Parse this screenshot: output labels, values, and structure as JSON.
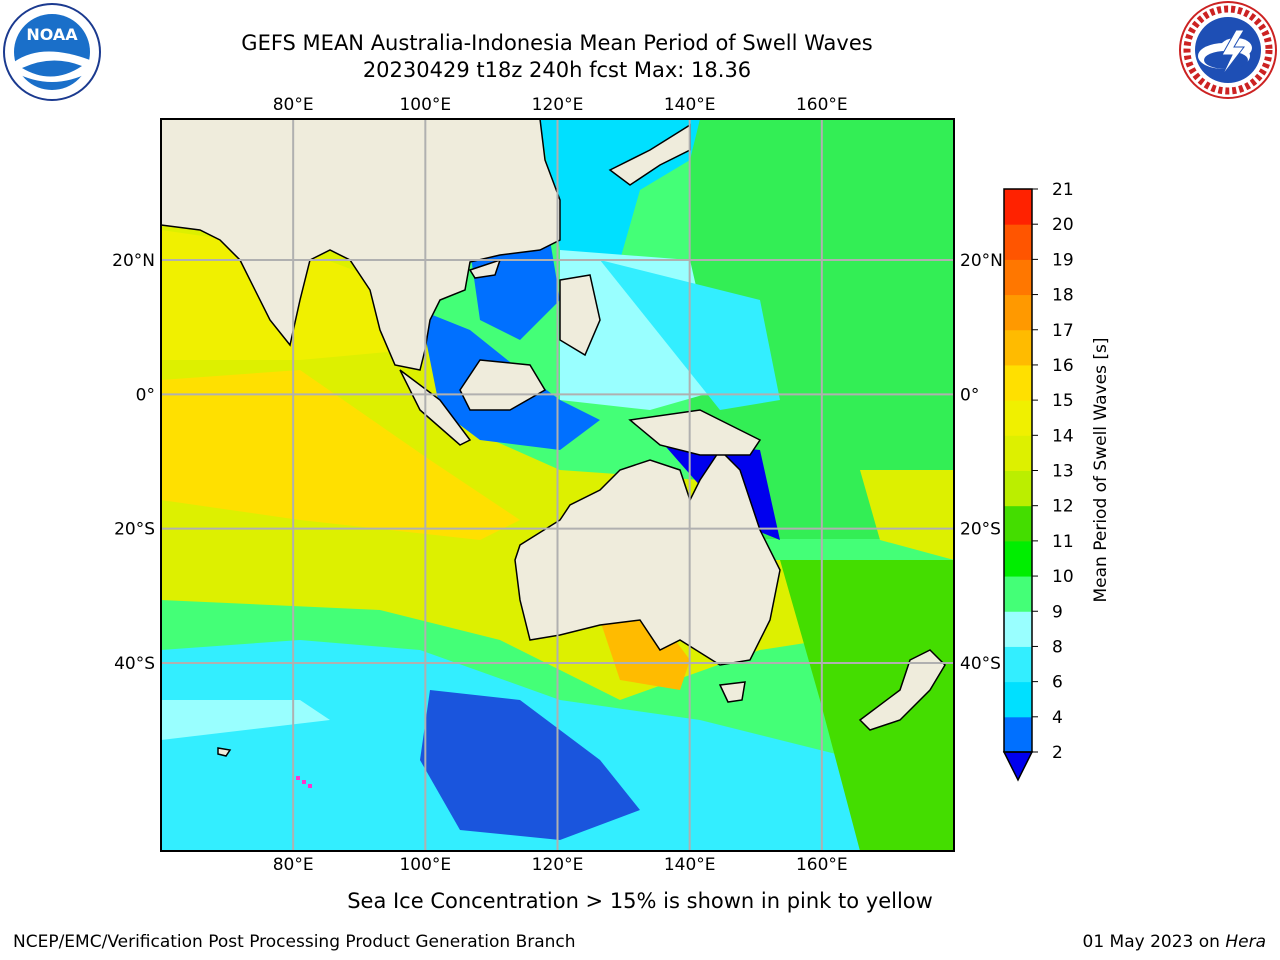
{
  "header": {
    "title_line1": "GEFS MEAN Australia-Indonesia Mean Period of Swell Waves",
    "title_line2": "20230429 t18z 240h fcst   Max: 18.36"
  },
  "logos": {
    "left_icon": "noaa-logo",
    "left_text": "NOAA",
    "left_ring_text": "NATIONAL OCEANIC AND ATMOSPHERIC ADMINISTRATION · U.S. DEPARTMENT OF COMMERCE",
    "right_icon": "national-weather-service-logo",
    "right_ring_text": "NATIONAL WEATHER SERVICE"
  },
  "map": {
    "lon_labels": [
      "80°E",
      "100°E",
      "120°E",
      "140°E",
      "160°E"
    ],
    "lat_labels": [
      "20°N",
      "0°",
      "20°S",
      "40°S"
    ],
    "lon_values": [
      80,
      100,
      120,
      140,
      160
    ],
    "lat_values": [
      20,
      0,
      -20,
      -40
    ],
    "extent": {
      "lon_min": 60,
      "lon_max": 180,
      "lat_min": -68,
      "lat_max": 41
    },
    "colors": {
      "land": "#efecdc",
      "gridlines": "#b0b0b0"
    }
  },
  "colorbar": {
    "label": "Mean Period of Swell Waves [s]",
    "ticks": [
      "21",
      "20",
      "19",
      "18",
      "17",
      "16",
      "15",
      "14",
      "13",
      "12",
      "11",
      "10",
      "9",
      "8",
      "6",
      "4",
      "2"
    ],
    "levels": [
      {
        "from": 2,
        "to": 4,
        "color": "#0070ff"
      },
      {
        "from": 4,
        "to": 6,
        "color": "#00e0ff"
      },
      {
        "from": 6,
        "to": 8,
        "color": "#33eeff"
      },
      {
        "from": 8,
        "to": 9,
        "color": "#99ffff"
      },
      {
        "from": 9,
        "to": 10,
        "color": "#44ff77"
      },
      {
        "from": 10,
        "to": 11,
        "color": "#00ee00"
      },
      {
        "from": 11,
        "to": 12,
        "color": "#44dd00"
      },
      {
        "from": 12,
        "to": 13,
        "color": "#bbee00"
      },
      {
        "from": 13,
        "to": 14,
        "color": "#ddf000"
      },
      {
        "from": 14,
        "to": 15,
        "color": "#f0f000"
      },
      {
        "from": 15,
        "to": 16,
        "color": "#ffe000"
      },
      {
        "from": 16,
        "to": 17,
        "color": "#ffbb00"
      },
      {
        "from": 17,
        "to": 18,
        "color": "#ff9900"
      },
      {
        "from": 18,
        "to": 19,
        "color": "#ff7700"
      },
      {
        "from": 19,
        "to": 20,
        "color": "#ff5500"
      },
      {
        "from": 20,
        "to": 21,
        "color": "#ff2200"
      }
    ],
    "under_color": "#0000ee"
  },
  "footer": {
    "note": "Sea Ice Concentration > 15% is shown in pink to yellow",
    "credit": "NCEP/EMC/Verification Post Processing Product Generation Branch",
    "date": "01 May 2023 on ",
    "host": "Hera"
  }
}
